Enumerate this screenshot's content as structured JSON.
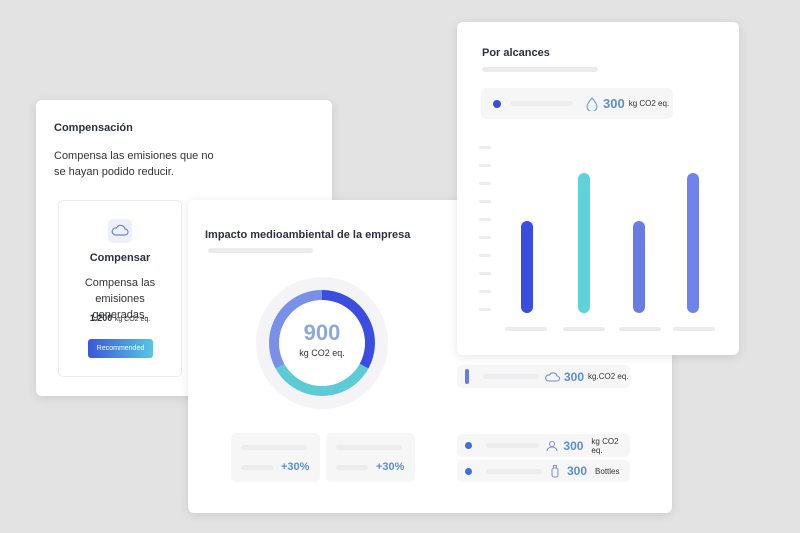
{
  "compensation_card": {
    "title": "Compensación",
    "description": "Compensa las emisiones que no se hayan podido reducir.",
    "option": {
      "title": "Compensar",
      "description": "Compensa las emisiones generadas.",
      "amount": "1.200",
      "unit": "kg CO2 eq.",
      "badge": "Recommended"
    }
  },
  "impact_card": {
    "title": "Impacto medioambiental de la empresa",
    "total": 900,
    "unit": "kg CO2 eq.",
    "stats": [
      "+30%",
      "+30%"
    ]
  },
  "scopes_card": {
    "title": "Por alcances",
    "highlight": {
      "value": 300,
      "unit": "kg CO2 eq."
    }
  },
  "side_rows": [
    {
      "value": 300,
      "unit": "kg.CO2 eq."
    },
    {
      "value": 300,
      "unit": "kg CO2 eq."
    },
    {
      "value": 300,
      "unit": "Bottles"
    }
  ]
}
